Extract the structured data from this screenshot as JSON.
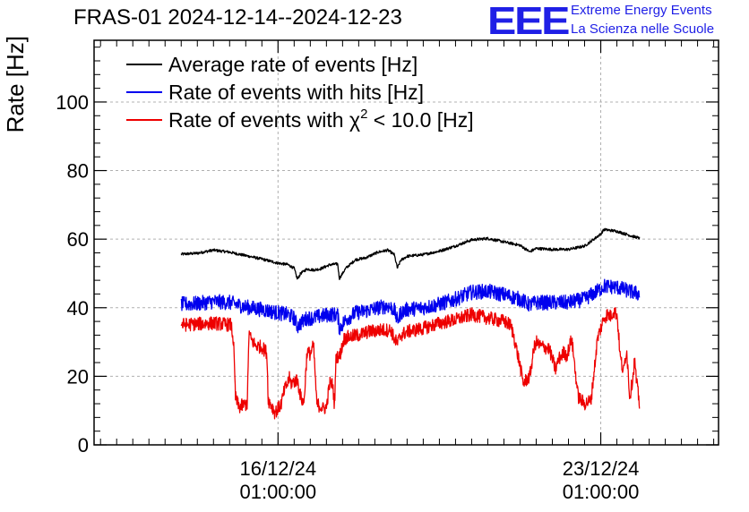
{
  "title": "FRAS-01 2024-12-14--2024-12-23",
  "logo": {
    "mark": "EEE",
    "line1": "Extreme Energy Events",
    "line2": "La Scienza nelle Scuole",
    "color": "#1f1fe6"
  },
  "chart_data": {
    "type": "line",
    "title": "FRAS-01 2024-12-14--2024-12-23",
    "xlabel": "",
    "ylabel": "Rate [Hz]",
    "ylim": [
      0,
      118
    ],
    "xlim": [
      -5.7,
      13.65
    ],
    "x_unit": "days relative to 16/12/24 01:00:00",
    "yticks": [
      0,
      20,
      40,
      60,
      80,
      100
    ],
    "xticks": [
      {
        "x": 0,
        "date": "16/12/24",
        "time": "01:00:00"
      },
      {
        "x": 10,
        "date": "23/12/24",
        "time": "01:00:00"
      }
    ],
    "grid": true,
    "legend_position": "top-left",
    "series": [
      {
        "name": "Average rate of events [Hz]",
        "name_prefix": "Average rate of events [Hz]",
        "name_superscript": "",
        "name_suffix": "",
        "color": "#000000",
        "noise": 0.4,
        "x": [
          -3.0,
          -2.5,
          -2.0,
          -1.5,
          -1.0,
          -0.5,
          0.0,
          0.3,
          0.5,
          0.6,
          0.7,
          0.9,
          1.1,
          1.3,
          1.6,
          1.85,
          1.9,
          2.1,
          2.4,
          2.7,
          3.1,
          3.4,
          3.6,
          3.7,
          3.8,
          4.0,
          4.5,
          5.0,
          5.5,
          6.0,
          6.5,
          7.0,
          7.5,
          7.8,
          8.0,
          8.5,
          9.0,
          9.5,
          10.0,
          10.1,
          10.5,
          11.0,
          11.2
        ],
        "y": [
          55.6,
          55.9,
          56.8,
          56.2,
          55.2,
          54.2,
          53.0,
          52.6,
          51.5,
          48.3,
          50.0,
          51.3,
          51.0,
          51.3,
          52.5,
          52.8,
          48.5,
          51.5,
          54.0,
          54.5,
          56.2,
          56.8,
          55.5,
          51.5,
          53.8,
          55.0,
          55.5,
          56.5,
          58.0,
          59.8,
          60.2,
          59.2,
          58.2,
          56.3,
          57.3,
          57.0,
          57.0,
          58.0,
          61.5,
          62.8,
          62.3,
          60.8,
          60.3
        ]
      },
      {
        "name": "Rate of events with hits [Hz]",
        "name_prefix": "Rate of events with hits [Hz]",
        "name_superscript": "",
        "name_suffix": "",
        "color": "#0000ee",
        "noise": 2.2,
        "x": [
          -3.0,
          -2.5,
          -2.0,
          -1.5,
          -1.0,
          -0.5,
          0.0,
          0.3,
          0.5,
          0.6,
          0.7,
          0.9,
          1.1,
          1.3,
          1.6,
          1.85,
          1.9,
          2.1,
          2.4,
          2.7,
          3.1,
          3.4,
          3.6,
          3.7,
          3.8,
          4.0,
          4.5,
          5.0,
          5.5,
          6.0,
          6.5,
          7.0,
          7.5,
          7.8,
          8.0,
          8.5,
          9.0,
          9.5,
          10.0,
          10.1,
          10.5,
          11.0,
          11.2
        ],
        "y": [
          41.0,
          41.2,
          41.8,
          41.5,
          40.2,
          39.5,
          38.5,
          38.0,
          37.0,
          34.5,
          35.5,
          37.0,
          37.0,
          37.5,
          38.0,
          38.0,
          34.0,
          36.5,
          38.5,
          39.0,
          40.0,
          40.5,
          39.5,
          36.0,
          38.5,
          39.5,
          40.0,
          41.0,
          42.5,
          44.5,
          44.8,
          43.8,
          42.5,
          40.8,
          41.5,
          41.5,
          41.5,
          42.5,
          45.5,
          46.3,
          46.0,
          44.5,
          44.0
        ]
      },
      {
        "name": "Rate of events with χ2 < 10.0 [Hz]",
        "name_prefix": "Rate of events with χ",
        "name_superscript": "2",
        "name_suffix": " < 10.0 [Hz]",
        "color": "#ee0000",
        "noise": 2.0,
        "x": [
          -3.0,
          -2.0,
          -1.45,
          -1.38,
          -1.32,
          -1.25,
          -1.2,
          -1.1,
          -0.95,
          -0.9,
          -0.85,
          -0.7,
          -0.5,
          -0.35,
          -0.3,
          -0.2,
          -0.1,
          0.0,
          0.1,
          0.2,
          0.3,
          0.35,
          0.4,
          0.5,
          0.6,
          0.7,
          0.8,
          0.9,
          1.0,
          1.1,
          1.2,
          1.35,
          1.4,
          1.5,
          1.6,
          1.7,
          1.75,
          1.8,
          1.9,
          2.05,
          2.2,
          2.5,
          2.8,
          3.2,
          3.5,
          3.6,
          3.7,
          3.8,
          4.0,
          4.5,
          5.0,
          5.5,
          6.0,
          6.5,
          7.0,
          7.2,
          7.3,
          7.5,
          7.6,
          7.8,
          7.95,
          8.0,
          8.1,
          8.4,
          8.6,
          8.7,
          8.85,
          8.95,
          9.1,
          9.3,
          9.5,
          9.7,
          9.9,
          10.1,
          10.2,
          10.3,
          10.4,
          10.5,
          10.55,
          10.6,
          10.7,
          10.8,
          10.9,
          11.0,
          11.05,
          11.1,
          11.2
        ],
        "y": [
          35.0,
          35.5,
          35.0,
          30.0,
          14.0,
          12.0,
          11.0,
          11.5,
          12.0,
          33.0,
          31.0,
          29.0,
          28.5,
          27.0,
          13.0,
          11.5,
          9.5,
          10.5,
          12.0,
          16.0,
          18.0,
          19.5,
          18.0,
          18.5,
          19.0,
          14.0,
          12.0,
          27.0,
          26.5,
          29.0,
          12.0,
          11.0,
          10.5,
          11.0,
          18.0,
          17.5,
          11.0,
          26.0,
          25.5,
          31.0,
          31.5,
          32.0,
          33.0,
          33.5,
          33.5,
          31.0,
          29.5,
          32.0,
          33.0,
          34.0,
          35.5,
          36.5,
          38.0,
          37.0,
          36.0,
          35.0,
          32.0,
          23.0,
          18.0,
          20.0,
          29.0,
          30.0,
          29.0,
          28.0,
          22.0,
          25.0,
          27.0,
          26.0,
          31.0,
          14.0,
          12.0,
          13.0,
          31.0,
          37.0,
          38.0,
          37.5,
          39.0,
          38.0,
          33.0,
          26.0,
          21.0,
          28.0,
          14.0,
          20.0,
          25.0,
          19.0,
          12.0
        ]
      }
    ]
  }
}
